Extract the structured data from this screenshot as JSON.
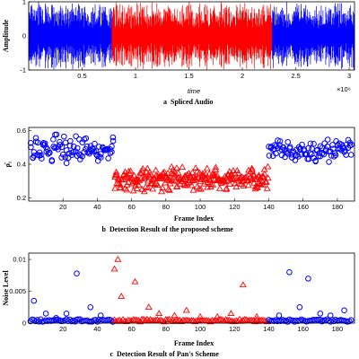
{
  "chart_data": [
    {
      "type": "line",
      "title": "Spliced Audio",
      "panel_letter": "a",
      "xlabel": "time",
      "ylabel": "Amplitude",
      "x_exponent": "×10⁶",
      "xlim": [
        0,
        3.05
      ],
      "ylim": [
        -1,
        1
      ],
      "xticks": [
        "0.5",
        "1",
        "1.5",
        "2",
        "2.5",
        "3"
      ],
      "yticks": [
        "-1",
        "0",
        "1"
      ],
      "series": [
        {
          "segment": [
            0,
            0.78
          ],
          "color": "#0000ff"
        },
        {
          "segment": [
            0.78,
            2.28
          ],
          "color": "#ff0000"
        },
        {
          "segment": [
            2.28,
            3.05
          ],
          "color": "#0000ff"
        }
      ]
    },
    {
      "type": "scatter",
      "title": "Detection Result of the proposed scheme",
      "panel_letter": "b",
      "xlabel": "Frame Index",
      "ylabel": "ρ̂₁",
      "xlim": [
        0,
        190
      ],
      "ylim": [
        0.18,
        0.62
      ],
      "xticks": [
        "20",
        "40",
        "60",
        "80",
        "100",
        "120",
        "140",
        "160",
        "180"
      ],
      "yticks": [
        "0.2",
        "0.4",
        "0.6"
      ],
      "groups": [
        {
          "range": [
            1,
            49
          ],
          "marker": "circle",
          "color": "#0000ff",
          "mean": 0.49,
          "spread": 0.06
        },
        {
          "range": [
            50,
            139
          ],
          "marker": "triangle",
          "color": "#ff0000",
          "mean": 0.31,
          "spread": 0.05
        },
        {
          "range": [
            140,
            188
          ],
          "marker": "circle",
          "color": "#0000ff",
          "mean": 0.48,
          "spread": 0.05
        }
      ]
    },
    {
      "type": "scatter",
      "title": "Detection Result of Pan's Scheme",
      "panel_letter": "c",
      "xlabel": "Frame Index",
      "ylabel": "Noise Level",
      "xlim": [
        0,
        190
      ],
      "ylim": [
        0,
        0.011
      ],
      "xticks": [
        "20",
        "40",
        "60",
        "80",
        "100",
        "120",
        "140",
        "160",
        "180"
      ],
      "yticks": [
        "0",
        "0.005",
        "0.01"
      ],
      "groups": [
        {
          "range": [
            1,
            49
          ],
          "marker": "circle",
          "color": "#0000ff"
        },
        {
          "range": [
            50,
            139
          ],
          "marker": "triangle",
          "color": "#ff0000"
        },
        {
          "range": [
            140,
            188
          ],
          "marker": "circle",
          "color": "#0000ff"
        }
      ],
      "outliers": [
        {
          "x": 3,
          "y": 0.0035,
          "g": 0
        },
        {
          "x": 10,
          "y": 0.0015,
          "g": 0
        },
        {
          "x": 16,
          "y": 0.0008,
          "g": 0
        },
        {
          "x": 22,
          "y": 0.0015,
          "g": 0
        },
        {
          "x": 28,
          "y": 0.0078,
          "g": 0
        },
        {
          "x": 36,
          "y": 0.0025,
          "g": 0
        },
        {
          "x": 42,
          "y": 0.0012,
          "g": 0
        },
        {
          "x": 50,
          "y": 0.0085,
          "g": 1
        },
        {
          "x": 52,
          "y": 0.01,
          "g": 1
        },
        {
          "x": 54,
          "y": 0.0042,
          "g": 1
        },
        {
          "x": 62,
          "y": 0.0065,
          "g": 1
        },
        {
          "x": 70,
          "y": 0.0025,
          "g": 1
        },
        {
          "x": 76,
          "y": 0.0015,
          "g": 1
        },
        {
          "x": 85,
          "y": 0.0012,
          "g": 1
        },
        {
          "x": 92,
          "y": 0.002,
          "g": 1
        },
        {
          "x": 100,
          "y": 0.001,
          "g": 1
        },
        {
          "x": 110,
          "y": 0.001,
          "g": 1
        },
        {
          "x": 118,
          "y": 0.0015,
          "g": 1
        },
        {
          "x": 125,
          "y": 0.006,
          "g": 1
        },
        {
          "x": 133,
          "y": 0.001,
          "g": 1
        },
        {
          "x": 146,
          "y": 0.0012,
          "g": 2
        },
        {
          "x": 152,
          "y": 0.008,
          "g": 2
        },
        {
          "x": 158,
          "y": 0.0025,
          "g": 2
        },
        {
          "x": 163,
          "y": 0.007,
          "g": 2
        },
        {
          "x": 170,
          "y": 0.0015,
          "g": 2
        },
        {
          "x": 176,
          "y": 0.0012,
          "g": 2
        },
        {
          "x": 184,
          "y": 0.002,
          "g": 2
        }
      ]
    }
  ]
}
